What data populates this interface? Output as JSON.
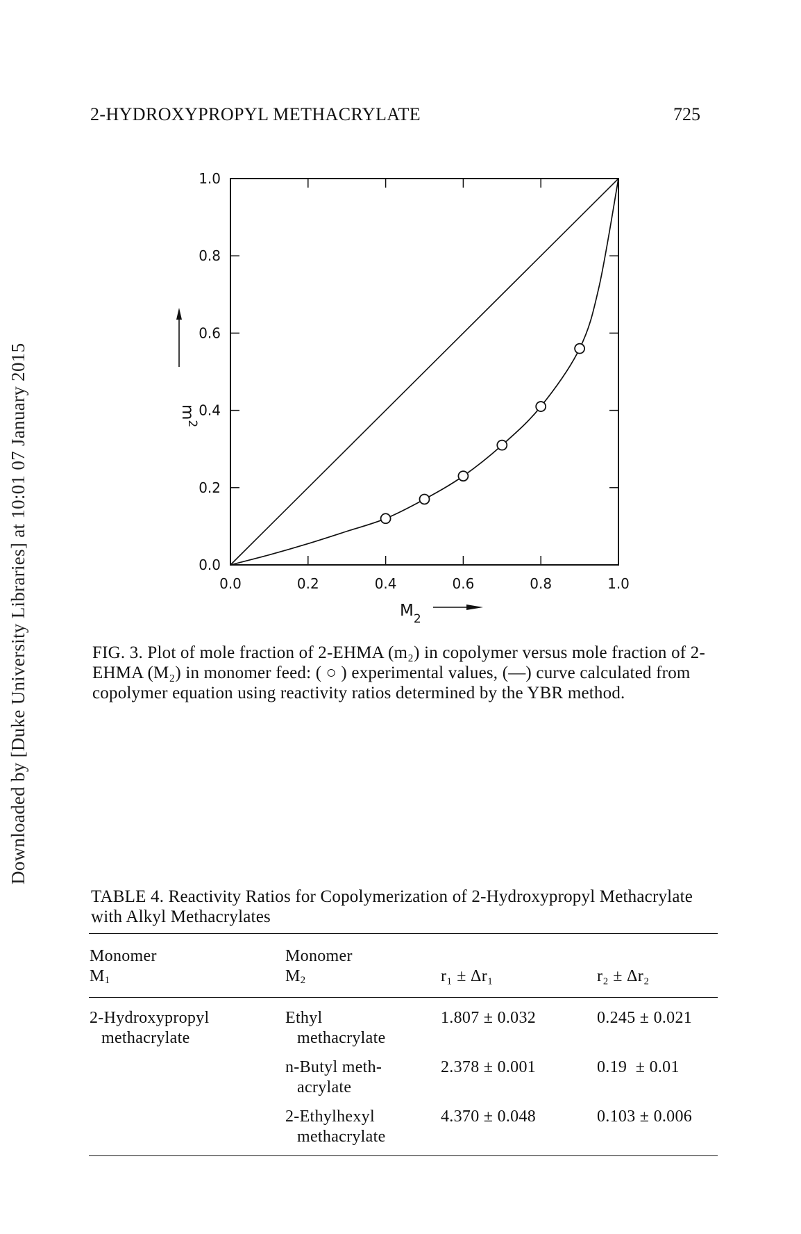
{
  "side_note": "Downloaded by [Duke University Libraries] at 10:01 07 January 2015",
  "running_head": "2-HYDROXYPROPYL METHACRYLATE",
  "page_number": "725",
  "figure": {
    "y_axis_label": "m",
    "y_axis_label_subscript": "2",
    "x_axis_label": "M",
    "x_axis_label_subscript": "2",
    "caption": "FIG. 3. Plot of mole fraction of 2-EHMA (m₂) in copolymer versus mole fraction of 2-EHMA (M₂) in monomer feed: ( ○ ) experimental values, (—) curve calculated from copolymer equation using reactivity ratios determined by the YBR method."
  },
  "chart_data": {
    "type": "scatter",
    "xlabel": "M2",
    "ylabel": "m2",
    "xlim": [
      0.0,
      1.0
    ],
    "ylim": [
      0.0,
      1.0
    ],
    "x_ticks": [
      "0.0",
      "0.2",
      "0.4",
      "0.6",
      "0.8",
      "1.0"
    ],
    "y_ticks": [
      "0.0",
      "0.2",
      "0.4",
      "0.6",
      "0.8",
      "1.0"
    ],
    "grid": false,
    "series": [
      {
        "kind": "points",
        "marker": "open-circle",
        "x": [
          0.4,
          0.5,
          0.6,
          0.7,
          0.8,
          0.9
        ],
        "y": [
          0.12,
          0.17,
          0.23,
          0.31,
          0.41,
          0.56
        ]
      },
      {
        "kind": "line",
        "x": [
          0.0,
          0.1,
          0.2,
          0.3,
          0.4,
          0.5,
          0.6,
          0.7,
          0.8,
          0.9,
          0.95,
          1.0
        ],
        "y": [
          0.0,
          0.026,
          0.055,
          0.087,
          0.12,
          0.17,
          0.23,
          0.31,
          0.41,
          0.56,
          0.72,
          1.0
        ]
      },
      {
        "kind": "line",
        "x": [
          0.0,
          1.0
        ],
        "y": [
          0.0,
          1.0
        ]
      }
    ]
  },
  "table": {
    "title": "TABLE 4. Reactivity Ratios for Copolymerization of 2-Hydroxypropyl Methacrylate with Alkyl Methacrylates",
    "headers": {
      "col1_line1": "Monomer",
      "col1_line2": "M",
      "col1_sub": "1",
      "col2_line1": "Monomer",
      "col2_line2": "M",
      "col2_sub": "2",
      "col3": "r₁ ± Δr₁",
      "col4": "r₂ ± Δr₂"
    },
    "m1_line1": "2-Hydroxypropyl",
    "m1_line2": "methacrylate",
    "rows": [
      {
        "m2_line1": "Ethyl",
        "m2_line2": "methacrylate",
        "r1": "1.807 ± 0.032",
        "r2": "0.245 ± 0.021"
      },
      {
        "m2_line1": "n-Butyl meth-",
        "m2_line2": "acrylate",
        "r1": "2.378 ± 0.001",
        "r2": "0.19  ± 0.01"
      },
      {
        "m2_line1": "2-Ethylhexyl",
        "m2_line2": "methacrylate",
        "r1": "4.370 ± 0.048",
        "r2": "0.103 ± 0.006"
      }
    ]
  }
}
